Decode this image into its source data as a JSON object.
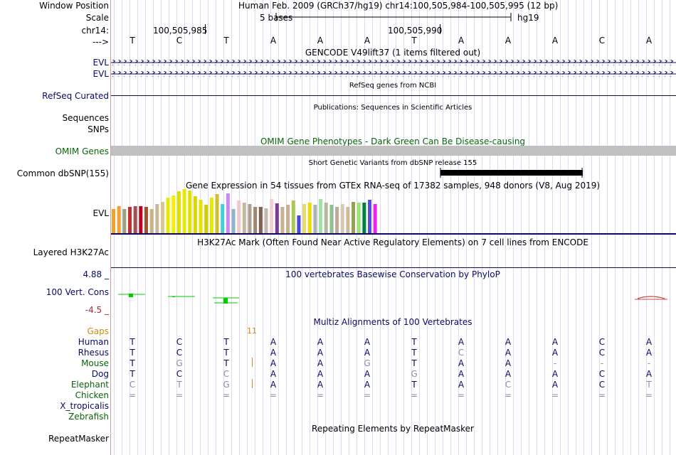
{
  "header": {
    "window_position_label": "Window Position",
    "window_position_text": "Human Feb. 2009 (GRCh37/hg19)     chr14:100,505,984-100,505,995 (12 bp)",
    "scale_label": "Scale",
    "scale_text": "5 bases",
    "scale_assembly": "hg19",
    "chrom_label": "chr14:",
    "pos1": "100,505,985",
    "pos2": "100,505,990",
    "strand_label": "--->",
    "bases": [
      "T",
      "C",
      "T",
      "A",
      "A",
      "A",
      "T",
      "A",
      "A",
      "A",
      "C",
      "A"
    ]
  },
  "tracks": {
    "gencode_title": "GENCODE V49lift37 (1 items filtered out)",
    "evl1_label": "EVL",
    "evl2_label": "EVL",
    "refseq_title": "RefSeq genes from NCBI",
    "refseq_label": "RefSeq Curated",
    "publications_title": "Publications: Sequences in Scientific Articles",
    "sequences_label": "Sequences",
    "snps_label": "SNPs",
    "omim_title": "OMIM Gene Phenotypes - Dark Green Can Be Disease-causing",
    "omim_label": "OMIM Genes",
    "dbsnp_title": "Short Genetic Variants from dbSNP release 155",
    "dbsnp_label": "Common dbSNP(155)",
    "gtex_title": "Gene Expression in 54 tissues from GTEx RNA-seq of 17382 samples, 948 donors (V8, Aug 2019)",
    "gtex_label": "EVL",
    "h3k27_title": "H3K27Ac Mark (Often Found Near Active Regulatory Elements) on 7 cell lines from ENCODE",
    "h3k27_label": "Layered H3K27Ac",
    "phylop_title": "100 vertebrates Basewise Conservation by PhyloP",
    "phylop_label": "100 Vert. Cons",
    "phylop_max": "4.88 _",
    "phylop_min": "-4.5 _",
    "multiz_title": "Multiz Alignments of 100 Vertebrates",
    "gaps_label": "Gaps",
    "gaps_value": "11",
    "repeat_title": "Repeating Elements by RepeatMasker",
    "repeat_label": "RepeatMasker"
  },
  "colors": {
    "navy": "#0a0a64",
    "green": "#0a640a",
    "omim_bar": "#c0c0c0",
    "gaps": "#d08a10",
    "phylop_min": "#a03030",
    "conservation": "#00cc00",
    "gtex_bars": [
      "#f5a030",
      "#f5a030",
      "#a0a080",
      "#c03030",
      "#a05050",
      "#c00020",
      "#a0522d",
      "#cfae84",
      "#c8b898",
      "#d8c890",
      "#e8e800",
      "#f0f000",
      "#e0e000",
      "#e8e800",
      "#e0e000",
      "#d8d800",
      "#e8e000",
      "#d0d000",
      "#e8e800",
      "#d0c030",
      "#40d0d0",
      "#cc88ee",
      "#8cb4d0",
      "#f0c8c8",
      "#c8b8a0",
      "#b0a090",
      "#a08870",
      "#806050",
      "#c8b4a8",
      "#f0d0d0",
      "#7f3a96",
      "#c8b090",
      "#c8b090",
      "#a8c850",
      "#4848e0",
      "#e8d870",
      "#f0d800",
      "#b0b0b0",
      "#a0e0a0",
      "#b8b8a0",
      "#90c090",
      "#c0a898",
      "#d8c8b0",
      "#d0b898",
      "#98a050",
      "#98e870",
      "#008040",
      "#5050e0",
      "#f020f0"
    ],
    "gtex_values": [
      0.28,
      0.32,
      0.28,
      0.31,
      0.32,
      0.32,
      0.31,
      0.28,
      0.34,
      0.37,
      0.42,
      0.44,
      0.49,
      0.52,
      0.5,
      0.43,
      0.39,
      0.33,
      0.42,
      0.46,
      0.34,
      0.47,
      0.28,
      0.38,
      0.36,
      0.34,
      0.31,
      0.31,
      0.29,
      0.4,
      0.35,
      0.31,
      0.33,
      0.38,
      0.21,
      0.34,
      0.36,
      0.33,
      0.4,
      0.36,
      0.33,
      0.31,
      0.34,
      0.31,
      0.37,
      0.36,
      0.36,
      0.39,
      0.34
    ]
  },
  "alignment": {
    "species": [
      "Human",
      "Rhesus",
      "Mouse",
      "Dog",
      "Elephant",
      "Chicken",
      "X_tropicalis",
      "Zebrafish"
    ],
    "species_colors": [
      "#0a0a64",
      "#0a0a64",
      "#0a640a",
      "#0a0a64",
      "#0a640a",
      "#0a640a",
      "#0a0a64",
      "#0a640a"
    ],
    "rows": [
      [
        "T",
        "C",
        "T",
        "A",
        "A",
        "A",
        "T",
        "A",
        "A",
        "A",
        "C",
        "A"
      ],
      [
        "T",
        "C",
        "T",
        "A",
        "A",
        "A",
        "T",
        "C",
        "A",
        "A",
        "C",
        "A"
      ],
      [
        "T",
        "G",
        "T",
        "A",
        "A",
        "G",
        "T",
        "A",
        "A",
        "-",
        "-",
        "-"
      ],
      [
        "T",
        "C",
        "C",
        "A",
        "A",
        "A",
        "G",
        "A",
        "A",
        "A",
        "C",
        "A"
      ],
      [
        "C",
        "T",
        "G",
        "A",
        "A",
        "A",
        "T",
        "A",
        "C",
        "A",
        "C",
        "T"
      ],
      [
        "=",
        "=",
        "=",
        "=",
        "=",
        "=",
        "=",
        "=",
        "=",
        "=",
        "=",
        "="
      ]
    ]
  }
}
